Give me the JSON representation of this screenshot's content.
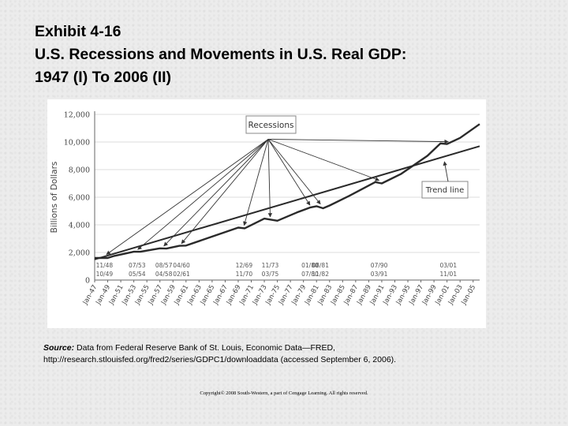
{
  "title": {
    "line1": "Exhibit 4-16",
    "line2": "U.S. Recessions and Movements in U.S. Real GDP:",
    "line3": "1947 (I) To 2006 (II)"
  },
  "chart_data": {
    "type": "line",
    "title": "",
    "xlabel": "",
    "ylabel": "Billions of Dollars",
    "ylim": [
      0,
      12000
    ],
    "yticks": [
      0,
      2000,
      4000,
      6000,
      8000,
      10000,
      12000
    ],
    "ytick_labels": [
      "0",
      "2,000",
      "4,000",
      "6,000",
      "8,000",
      "10,000",
      "12,000"
    ],
    "xlim": [
      1947,
      2006
    ],
    "xtick_labels": [
      "Jan-47",
      "Jan-49",
      "Jan-51",
      "Jan-53",
      "Jan-55",
      "Jan-57",
      "Jan-59",
      "Jan-61",
      "Jan-63",
      "Jan-65",
      "Jan-67",
      "Jan-69",
      "Jan-71",
      "Jan-73",
      "Jan-75",
      "Jan-77",
      "Jan-79",
      "Jan-81",
      "Jan-83",
      "Jan-85",
      "Jan-87",
      "Jan-89",
      "Jan-91",
      "Jan-93",
      "Jan-95",
      "Jan-97",
      "Jan-99",
      "Jan-01",
      "Jan-03",
      "Jan-05"
    ],
    "series": [
      {
        "name": "Real GDP",
        "x": [
          1947,
          1949,
          1950,
          1953,
          1954,
          1957,
          1958,
          1960,
          1961,
          1965,
          1969,
          1970,
          1973,
          1975,
          1978,
          1980,
          1981,
          1982,
          1983,
          1986,
          1990,
          1991,
          1994,
          1998,
          2000,
          2001,
          2003,
          2006
        ],
        "y": [
          1600,
          1600,
          1750,
          2050,
          2050,
          2300,
          2280,
          2480,
          2500,
          3150,
          3800,
          3750,
          4450,
          4300,
          4900,
          5250,
          5350,
          5200,
          5400,
          6100,
          7100,
          7000,
          7700,
          9000,
          9900,
          9850,
          10300,
          11300
        ]
      },
      {
        "name": "Trend line",
        "x": [
          1947,
          2006
        ],
        "y": [
          1500,
          9700
        ]
      }
    ],
    "annotations": [
      {
        "text": "Recessions",
        "target": "recession-points"
      },
      {
        "text": "Trend line",
        "target": "trend-line"
      }
    ],
    "recession_points": [
      {
        "x": 1948.8,
        "y": 1680
      },
      {
        "x": 1953.6,
        "y": 2040
      },
      {
        "x": 1957.6,
        "y": 2290
      },
      {
        "x": 1960.3,
        "y": 2470
      },
      {
        "x": 1969.9,
        "y": 3790
      },
      {
        "x": 1973.9,
        "y": 4400
      },
      {
        "x": 1980.0,
        "y": 5250
      },
      {
        "x": 1981.6,
        "y": 5330
      },
      {
        "x": 1990.6,
        "y": 7050
      },
      {
        "x": 2001.2,
        "y": 9850
      }
    ],
    "recession_dates": [
      {
        "x": 1948.5,
        "peak": "11/48",
        "trough": "10/49"
      },
      {
        "x": 1953.5,
        "peak": "07/53",
        "trough": "05/54"
      },
      {
        "x": 1957.6,
        "peak": "08/57",
        "trough": "04/58"
      },
      {
        "x": 1960.3,
        "peak": "04/60",
        "trough": "02/61"
      },
      {
        "x": 1969.9,
        "peak": "12/69",
        "trough": "11/70"
      },
      {
        "x": 1973.9,
        "peak": "11/73",
        "trough": "03/75"
      },
      {
        "x": 1980.0,
        "peak": "01/80",
        "trough": "07/80"
      },
      {
        "x": 1981.6,
        "peak": "08/81",
        "trough": "11/82"
      },
      {
        "x": 1990.6,
        "peak": "07/90",
        "trough": "03/91"
      },
      {
        "x": 2001.2,
        "peak": "03/01",
        "trough": "11/01"
      }
    ]
  },
  "source": {
    "label": "Source:",
    "text": "Data from Federal Reserve Bank of St. Louis, Economic Data—FRED,",
    "url_line": "http://research.stlouisfed.org/fred2/series/GDPC1/downloaddata (accessed September 6, 2006)."
  },
  "copyright": "Copyright© 2008 South-Western, a part of Cengage Learning. All rights reserved.",
  "colors": {
    "series": "#2a2a2a",
    "axis": "#666666",
    "grid": "#dddddd",
    "text": "#444444"
  }
}
